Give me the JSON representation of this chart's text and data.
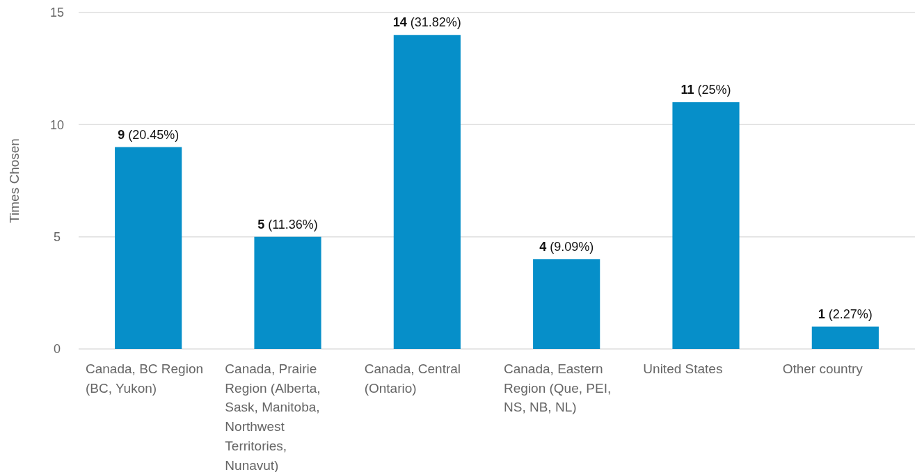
{
  "chart_data": {
    "type": "bar",
    "ylabel": "Times Chosen",
    "categories": [
      "Canada, BC Region (BC, Yukon)",
      "Canada, Prairie Region (Alberta, Sask, Manitoba, Northwest Territories, Nunavut)",
      "Canada, Central (Ontario)",
      "Canada, Eastern Region (Que, PEI, NS, NB, NL)",
      "United States",
      "Other country"
    ],
    "values": [
      9,
      5,
      14,
      4,
      11,
      1
    ],
    "value_labels": [
      "9 (20.45%)",
      "5 (11.36%)",
      "14 (31.82%)",
      "4 (9.09%)",
      "11 (25%)",
      "1 (2.27%)"
    ],
    "color": "#068fc9",
    "ylim": [
      0,
      15
    ],
    "yticks": [
      0,
      5,
      10,
      15
    ],
    "grid": "y"
  }
}
